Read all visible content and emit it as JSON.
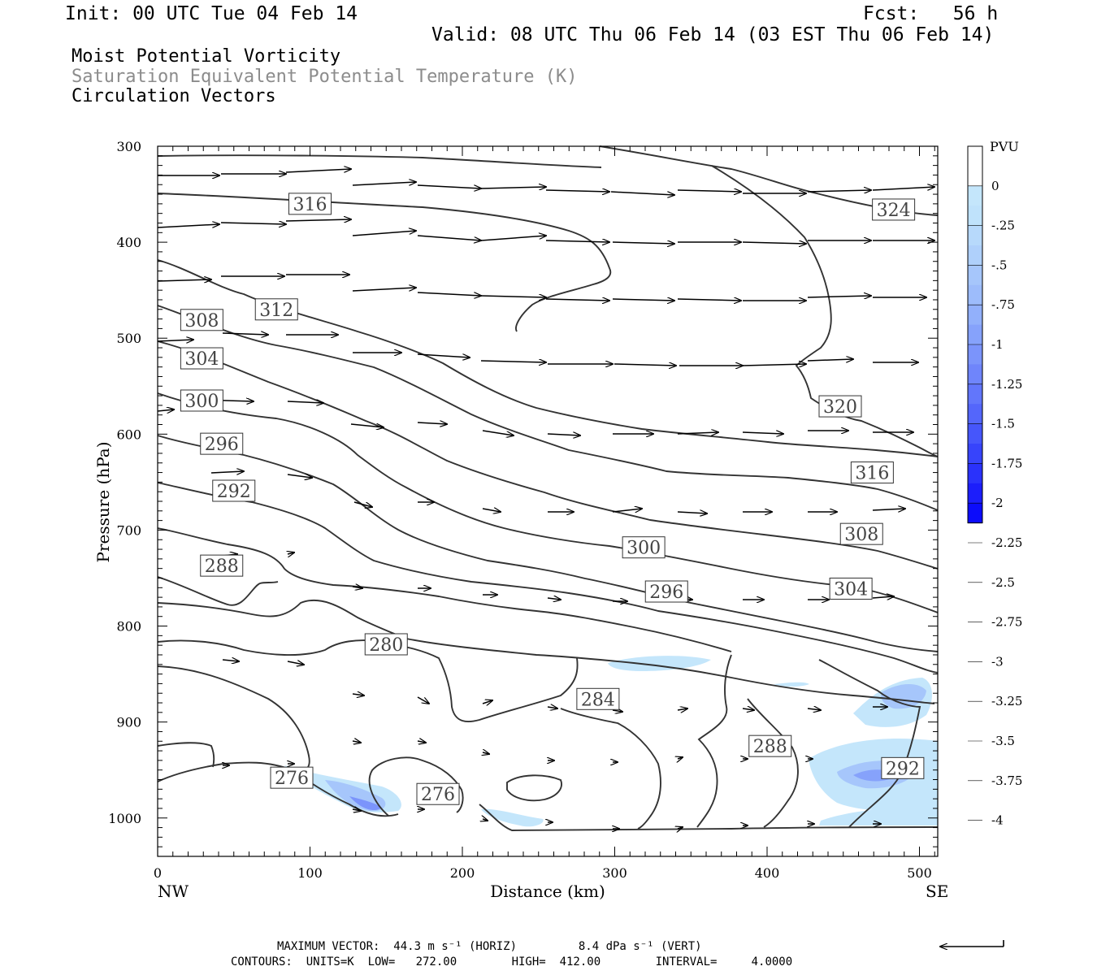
{
  "header": {
    "init": "Init: 00 UTC Tue 04 Feb 14",
    "fcst": "Fcst:   56 h",
    "valid": "Valid: 08 UTC Thu 06 Feb 14 (03 EST Thu 06 Feb 14)"
  },
  "fields": [
    {
      "label": "Moist Potential Vorticity",
      "color": "#000000"
    },
    {
      "label": "Saturation Equivalent Potential Temperature (K)",
      "color": "#8c8c8c"
    },
    {
      "label": "Circulation Vectors",
      "color": "#000000"
    }
  ],
  "footer": {
    "max_vector": "MAXIMUM VECTOR:  44.3 m s⁻¹ (HORIZ)         8.4 dPa s⁻¹ (VERT)",
    "contours": "CONTOURS:  UNITS=K  LOW=   272.00        HIGH=  412.00        INTERVAL=     4.0000"
  },
  "chart_data": {
    "type": "cross-section contour",
    "xlabel": "Distance (km)",
    "ylabel": "Pressure (hPa)",
    "xlim": [
      0,
      512
    ],
    "ylim": [
      1040,
      300
    ],
    "x_ticks": [
      0,
      100,
      200,
      300,
      400,
      500
    ],
    "y_ticks": [
      300,
      400,
      500,
      600,
      700,
      800,
      900,
      1000
    ],
    "x_end_labels": {
      "left": "NW",
      "right": "SE"
    },
    "colorbar": {
      "title": "PVU",
      "tick_labels": [
        "0",
        "-.25",
        "-.5",
        "-.75",
        "-1",
        "-1.25",
        "-1.5",
        "-1.75",
        "-2",
        "-2.25",
        "-2.5",
        "-2.75",
        "-3",
        "-3.25",
        "-3.5",
        "-3.75",
        "-4"
      ],
      "colors": [
        "#ffffff",
        "#ffffff",
        "#c4e6fb",
        "#bfe2fb",
        "#b7d9fb",
        "#afd0fb",
        "#a6c6fb",
        "#9dbcfb",
        "#92b0fb",
        "#86a2fb",
        "#7b94fb",
        "#6f85fb",
        "#6276fb",
        "#5466fb",
        "#4656fb",
        "#3744fb",
        "#2a32fb",
        "#1c1efb",
        "#0c0cfb"
      ]
    },
    "contour_labels": [
      {
        "value": "316",
        "x": 100,
        "p": 360
      },
      {
        "value": "324",
        "x": 483,
        "p": 366
      },
      {
        "value": "312",
        "x": 78,
        "p": 470
      },
      {
        "value": "308",
        "x": 29,
        "p": 481
      },
      {
        "value": "304",
        "x": 29,
        "p": 521
      },
      {
        "value": "320",
        "x": 448,
        "p": 571
      },
      {
        "value": "300",
        "x": 29,
        "p": 565
      },
      {
        "value": "296",
        "x": 42,
        "p": 610
      },
      {
        "value": "316",
        "x": 469,
        "p": 640
      },
      {
        "value": "292",
        "x": 50,
        "p": 659
      },
      {
        "value": "308",
        "x": 462,
        "p": 704
      },
      {
        "value": "300",
        "x": 319,
        "p": 718
      },
      {
        "value": "288",
        "x": 42,
        "p": 737
      },
      {
        "value": "296",
        "x": 334,
        "p": 764
      },
      {
        "value": "304",
        "x": 455,
        "p": 761
      },
      {
        "value": "280",
        "x": 150,
        "p": 819
      },
      {
        "value": "284",
        "x": 289,
        "p": 876
      },
      {
        "value": "288",
        "x": 402,
        "p": 925
      },
      {
        "value": "292",
        "x": 489,
        "p": 948
      },
      {
        "value": "276",
        "x": 88,
        "p": 958
      },
      {
        "value": "276",
        "x": 184,
        "p": 975
      }
    ]
  }
}
